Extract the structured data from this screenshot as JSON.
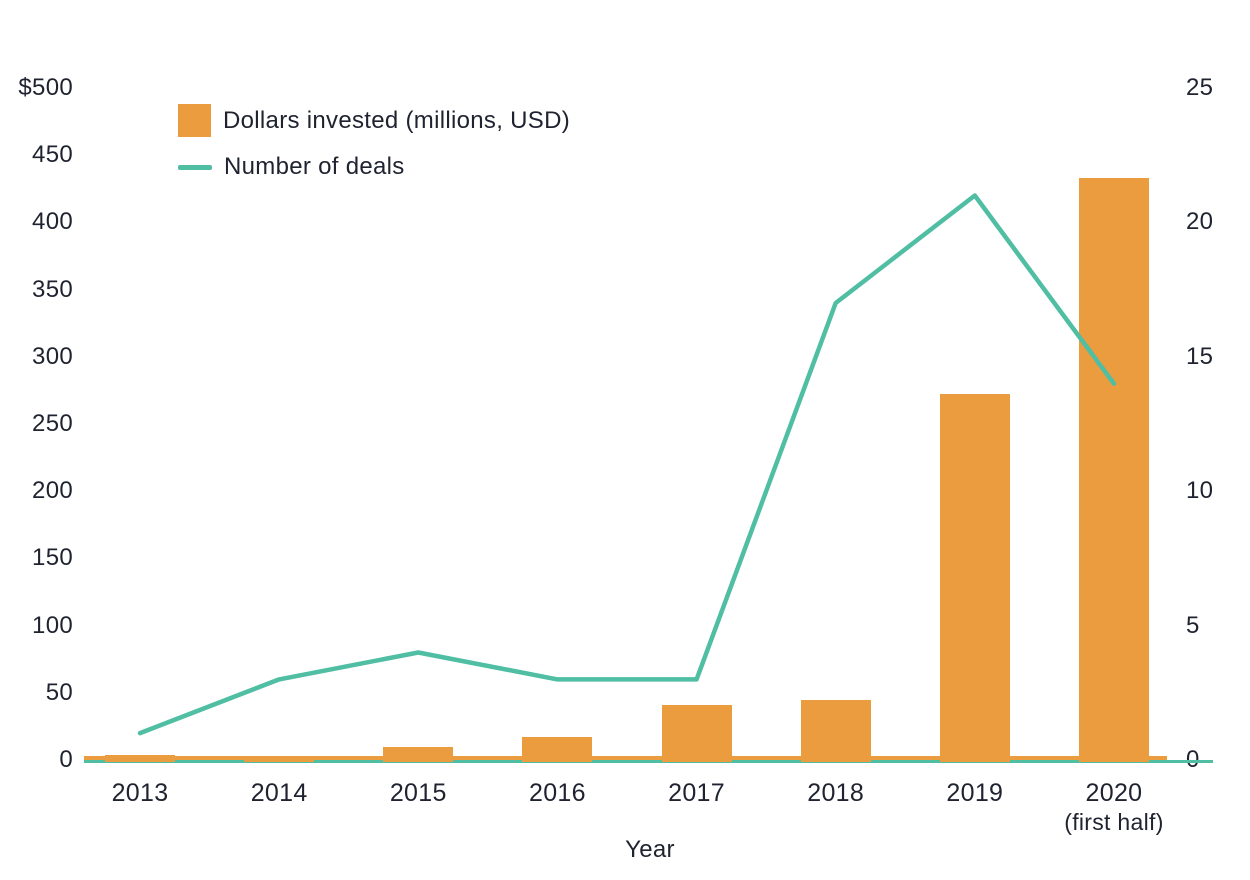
{
  "chart_data": {
    "type": "bar",
    "subtype": "bar-line-combo",
    "title": "",
    "xlabel": "Year",
    "categories": [
      "2013",
      "2014",
      "2015",
      "2016",
      "2017",
      "2018",
      "2019",
      "2020"
    ],
    "x_ticks": [
      {
        "label": "2013",
        "sub": ""
      },
      {
        "label": "2014",
        "sub": ""
      },
      {
        "label": "2015",
        "sub": ""
      },
      {
        "label": "2016",
        "sub": ""
      },
      {
        "label": "2017",
        "sub": ""
      },
      {
        "label": "2018",
        "sub": ""
      },
      {
        "label": "2019",
        "sub": ""
      },
      {
        "label": "2020",
        "sub": "(first half)"
      }
    ],
    "series": [
      {
        "name": "Dollars invested (millions, USD)",
        "type": "bar",
        "axis": "left",
        "color": "#EA9C3F",
        "values": [
          4,
          2,
          10,
          17,
          41,
          45,
          272,
          433
        ]
      },
      {
        "name": "Number of deals",
        "type": "line",
        "axis": "right",
        "color": "#4FBEA3",
        "values": [
          1,
          3,
          4,
          3,
          3,
          17,
          21,
          14
        ]
      }
    ],
    "left_axis": {
      "min": 0,
      "max": 500,
      "ticks": [
        {
          "label": "$500",
          "value": 500
        },
        {
          "label": "450",
          "value": 450
        },
        {
          "label": "400",
          "value": 400
        },
        {
          "label": "350",
          "value": 350
        },
        {
          "label": "300",
          "value": 300
        },
        {
          "label": "250",
          "value": 250
        },
        {
          "label": "200",
          "value": 200
        },
        {
          "label": "150",
          "value": 150
        },
        {
          "label": "100",
          "value": 100
        },
        {
          "label": "50",
          "value": 50
        },
        {
          "label": "0",
          "value": 0
        }
      ]
    },
    "right_axis": {
      "min": 0,
      "max": 25,
      "ticks": [
        {
          "label": "25",
          "value": 25
        },
        {
          "label": "20",
          "value": 20
        },
        {
          "label": "15",
          "value": 15
        },
        {
          "label": "10",
          "value": 10
        },
        {
          "label": "5",
          "value": 5
        },
        {
          "label": "0",
          "value": 0
        }
      ]
    },
    "legend_position": "top-left",
    "grid": false
  },
  "colors": {
    "bar": "#EA9C3F",
    "line": "#4FBEA3",
    "text": "#1F2330",
    "background": "#FFFFFF"
  }
}
